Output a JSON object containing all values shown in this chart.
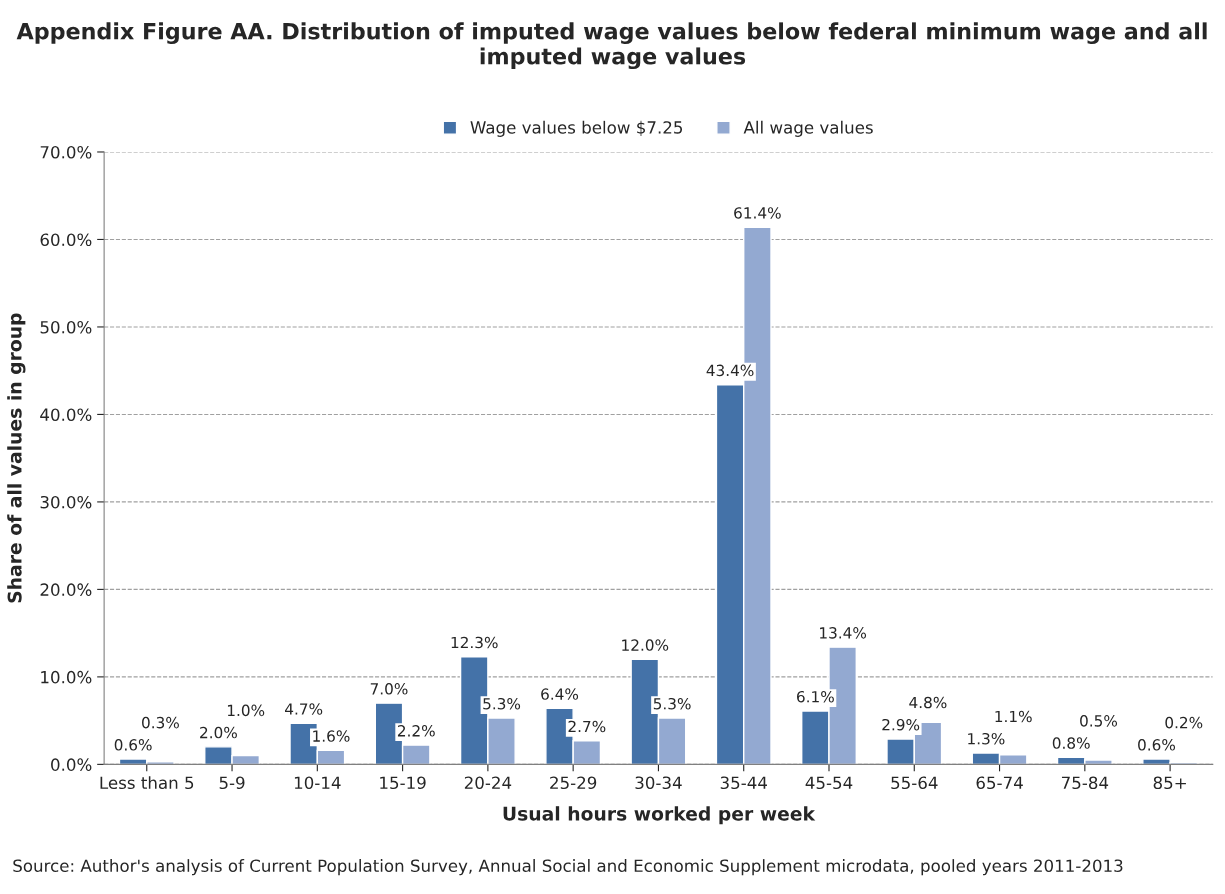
{
  "chart_data": {
    "type": "bar",
    "title": "Appendix Figure AA. Distribution of imputed wage values below federal minimum wage and all imputed wage values",
    "xlabel": "Usual hours worked per week",
    "ylabel": "Share of all values in group",
    "categories": [
      "Less than 5",
      "5-9",
      "10-14",
      "15-19",
      "20-24",
      "25-29",
      "30-34",
      "35-44",
      "45-54",
      "55-64",
      "65-74",
      "75-84",
      "85+"
    ],
    "series": [
      {
        "name": "Wage values below $7.25",
        "color": "#4472a8",
        "values": [
          0.6,
          2.0,
          4.7,
          7.0,
          12.3,
          6.4,
          12.0,
          43.4,
          6.1,
          2.9,
          1.3,
          0.8,
          0.6
        ],
        "value_labels": [
          "0.6%",
          "2.0%",
          "4.7%",
          "7.0%",
          "12.3%",
          "6.4%",
          "12.0%",
          "43.4%",
          "6.1%",
          "2.9%",
          "1.3%",
          "0.8%",
          "0.6%"
        ]
      },
      {
        "name": "All wage values",
        "color": "#93a9d1",
        "values": [
          0.3,
          1.0,
          1.6,
          2.2,
          5.3,
          2.7,
          5.3,
          61.4,
          13.4,
          4.8,
          1.1,
          0.5,
          0.2
        ],
        "value_labels": [
          "0.3%",
          "1.0%",
          "1.6%",
          "2.2%",
          "5.3%",
          "2.7%",
          "5.3%",
          "61.4%",
          "13.4%",
          "4.8%",
          "1.1%",
          "0.5%",
          "0.2%"
        ]
      }
    ],
    "ylim": [
      0,
      70
    ],
    "yticks": [
      {
        "value": 0,
        "label": "0.0%"
      },
      {
        "value": 10,
        "label": "10.0%"
      },
      {
        "value": 20,
        "label": "20.0%"
      },
      {
        "value": 30,
        "label": "30.0%"
      },
      {
        "value": 40,
        "label": "40.0%"
      },
      {
        "value": 50,
        "label": "50.0%"
      },
      {
        "value": 60,
        "label": "60.0%"
      },
      {
        "value": 70,
        "label": "70.0%"
      }
    ],
    "grid": "y",
    "legend": "top",
    "annotations": [
      "Source: Author's analysis of Current Population Survey, Annual Social and Economic Supplement microdata, pooled years 2011-2013"
    ]
  }
}
